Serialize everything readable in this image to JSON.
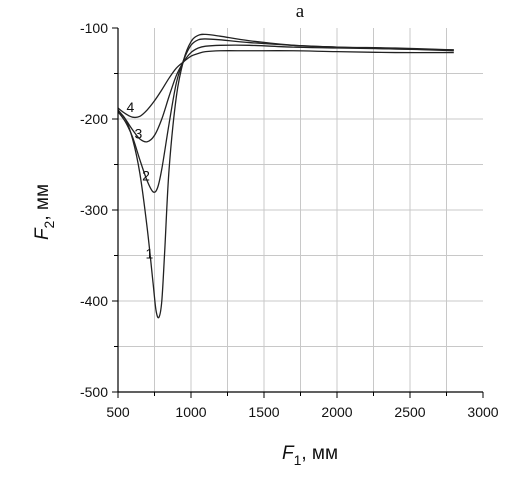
{
  "chart_data": {
    "type": "line",
    "title": "a",
    "xlabel": {
      "var": "F",
      "sub": "1",
      "unit": ", мм"
    },
    "ylabel": {
      "var": "F",
      "sub": "2",
      "unit": ", мм"
    },
    "xlim": [
      500,
      3000
    ],
    "ylim": [
      -500,
      -100
    ],
    "xticks": [
      500,
      1000,
      1500,
      2000,
      2500,
      3000
    ],
    "yticks": [
      -500,
      -400,
      -300,
      -200,
      -100
    ],
    "xminor_step": 250,
    "yminor_step": 50,
    "grid": true,
    "grid_color": "#c8c8c8",
    "line_color": "#222222",
    "series": [
      {
        "name": "1",
        "label_at": [
          715,
          -348
        ],
        "x": [
          500,
          550,
          600,
          650,
          700,
          740,
          760,
          780,
          800,
          820,
          850,
          900,
          950,
          1000,
          1050,
          1100,
          1200,
          1400,
          1700,
          2000,
          2400,
          2800
        ],
        "y": [
          -192,
          -200,
          -222,
          -260,
          -320,
          -380,
          -410,
          -418,
          -400,
          -345,
          -255,
          -175,
          -135,
          -115,
          -108,
          -107,
          -109,
          -114,
          -119,
          -121,
          -123,
          -124
        ]
      },
      {
        "name": "2",
        "label_at": [
          692,
          -262
        ],
        "x": [
          500,
          550,
          600,
          650,
          700,
          740,
          770,
          800,
          850,
          900,
          950,
          1000,
          1050,
          1100,
          1200,
          1400,
          1700,
          2000,
          2400,
          2800
        ],
        "y": [
          -192,
          -203,
          -220,
          -245,
          -268,
          -280,
          -276,
          -255,
          -205,
          -160,
          -135,
          -119,
          -113,
          -112,
          -113,
          -116,
          -119,
          -121,
          -122,
          -124
        ]
      },
      {
        "name": "3",
        "label_at": [
          640,
          -216
        ],
        "x": [
          500,
          550,
          600,
          650,
          700,
          750,
          800,
          850,
          900,
          950,
          1000,
          1050,
          1100,
          1200,
          1400,
          1700,
          2000,
          2400,
          2800
        ],
        "y": [
          -190,
          -200,
          -212,
          -222,
          -225,
          -218,
          -200,
          -175,
          -152,
          -137,
          -127,
          -122,
          -120,
          -119,
          -119,
          -121,
          -122,
          -123,
          -125
        ]
      },
      {
        "name": "4",
        "label_at": [
          585,
          -187
        ],
        "x": [
          500,
          550,
          600,
          650,
          700,
          750,
          800,
          850,
          900,
          950,
          1000,
          1050,
          1100,
          1200,
          1400,
          1700,
          2000,
          2400,
          2800
        ],
        "y": [
          -188,
          -194,
          -198,
          -197,
          -190,
          -180,
          -168,
          -155,
          -144,
          -137,
          -131,
          -128,
          -126,
          -125,
          -125,
          -125,
          -126,
          -127,
          -127
        ]
      }
    ]
  }
}
